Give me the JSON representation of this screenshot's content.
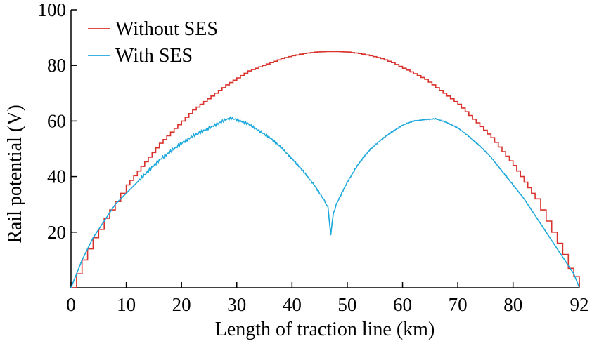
{
  "chart_data": {
    "type": "line",
    "title": "",
    "xlabel": "Length of traction line (km)",
    "ylabel": "Rail potential (V)",
    "xlim": [
      0,
      92
    ],
    "ylim": [
      0,
      100
    ],
    "x_ticks": [
      0,
      10,
      20,
      30,
      40,
      50,
      60,
      70,
      80,
      92
    ],
    "y_ticks": [
      20,
      40,
      60,
      80,
      100
    ],
    "x_tick_labels": [
      "0",
      "10",
      "20",
      "30",
      "40",
      "50",
      "60",
      "70",
      "80",
      "92"
    ],
    "y_tick_labels": [
      "20",
      "40",
      "60",
      "80",
      "100"
    ],
    "grid": false,
    "legend_position": "top-left",
    "series": [
      {
        "name": "Without SES",
        "color": "#d9312b",
        "x": [
          0,
          1,
          2,
          3,
          4,
          5,
          6,
          7,
          8,
          9,
          10,
          12,
          14,
          16,
          18,
          20,
          22,
          24,
          26,
          28,
          30,
          32,
          34,
          36,
          38,
          40,
          42,
          44,
          46,
          48,
          50,
          52,
          54,
          56,
          58,
          60,
          62,
          64,
          66,
          68,
          70,
          72,
          74,
          76,
          78,
          80,
          82,
          84,
          85,
          86,
          87,
          88,
          89,
          90,
          91,
          92
        ],
        "y": [
          0,
          5,
          10,
          14,
          18,
          21,
          25,
          28,
          31,
          34,
          37,
          42,
          47,
          52,
          56,
          60,
          64,
          67,
          70,
          73,
          75.5,
          78,
          79.5,
          81,
          82.5,
          83.5,
          84.3,
          84.8,
          85,
          85,
          84.8,
          84.3,
          83.5,
          82.5,
          81,
          79,
          77,
          75,
          72,
          69,
          66,
          62,
          58,
          54,
          49,
          44,
          38,
          32,
          28,
          24,
          20,
          16,
          12,
          7,
          4,
          0
        ]
      },
      {
        "name": "With SES",
        "color": "#1ba8dc",
        "x": [
          0,
          1,
          2,
          3,
          4,
          5,
          6,
          7,
          8,
          9,
          10,
          12,
          14,
          16,
          18,
          20,
          22,
          24,
          26,
          28,
          29,
          30,
          32,
          34,
          36,
          38,
          40,
          42,
          44,
          45,
          46,
          46.5,
          47,
          47.5,
          48,
          49,
          50,
          52,
          54,
          56,
          58,
          60,
          62,
          64,
          66,
          68,
          70,
          72,
          74,
          76,
          78,
          80,
          82,
          84,
          86,
          88,
          90,
          91,
          92
        ],
        "y": [
          0,
          5,
          10,
          14,
          18,
          21,
          24,
          27,
          30,
          32,
          34,
          38,
          42,
          46,
          49,
          52,
          54.5,
          56.5,
          58.5,
          60.5,
          61,
          60.5,
          59,
          56.5,
          54,
          50.5,
          46.5,
          42,
          37,
          34,
          31,
          29,
          19,
          27,
          30,
          34,
          38,
          44.5,
          49.5,
          53,
          56,
          58.5,
          60,
          60.5,
          60.8,
          59.5,
          57.5,
          54.5,
          51,
          47,
          42,
          37,
          32,
          26,
          20,
          14,
          8,
          5,
          0
        ]
      }
    ]
  }
}
